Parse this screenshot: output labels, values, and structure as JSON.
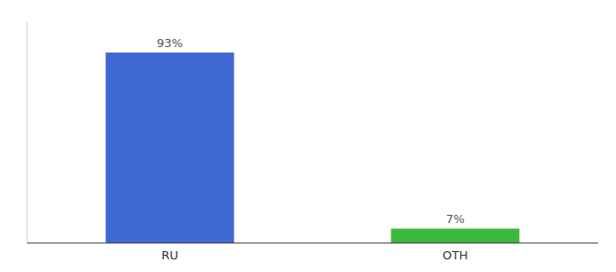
{
  "chart_data": {
    "type": "bar",
    "categories": [
      "RU",
      "OTH"
    ],
    "values": [
      93,
      7
    ],
    "value_labels": [
      "93%",
      "7%"
    ],
    "colors": [
      "#4169d4",
      "#3cb83c"
    ],
    "ylim": [
      0,
      108
    ],
    "data_labels": true,
    "tick_labels": "x"
  }
}
